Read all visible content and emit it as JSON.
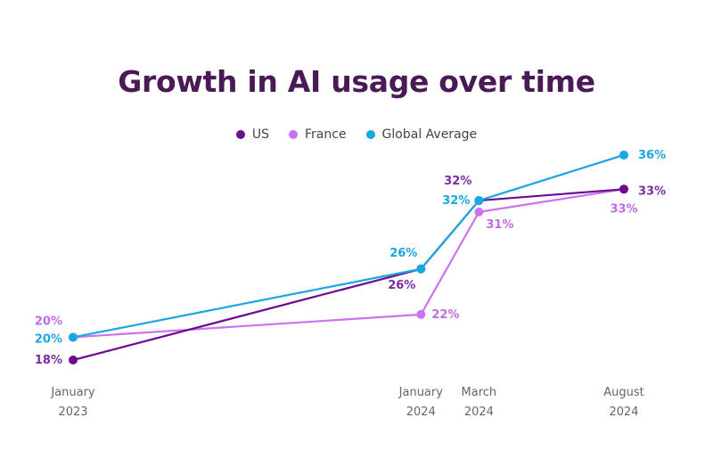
{
  "title": "Growth in AI usage over time",
  "chart_data": {
    "type": "line",
    "title": "Growth in AI usage over time",
    "x_categories": [
      [
        "January",
        "2023"
      ],
      [
        "January",
        "2024"
      ],
      [
        "March",
        "2024"
      ],
      [
        "August",
        "2024"
      ]
    ],
    "x_dates": [
      "2023-01",
      "2024-01",
      "2024-03",
      "2024-08"
    ],
    "y_unit": "%",
    "legend_position": "top-center",
    "grid": false,
    "series": [
      {
        "name": "US",
        "color": "#6a0d91",
        "label_color": "#7d2ba3",
        "values": [
          18,
          26,
          32,
          33
        ],
        "labels": [
          "18%",
          "26%",
          "32%",
          "33%"
        ]
      },
      {
        "name": "France",
        "color": "#cc72f0",
        "label_color": "#c06be6",
        "values": [
          20,
          22,
          31,
          33
        ],
        "labels": [
          "20%",
          "22%",
          "31%",
          "33%"
        ]
      },
      {
        "name": "Global Average",
        "color": "#1aa6e0",
        "label_color": "#1aa6e0",
        "values": [
          20,
          26,
          32,
          36
        ],
        "labels": [
          "20%",
          "26%",
          "32%",
          "36%"
        ]
      }
    ]
  }
}
